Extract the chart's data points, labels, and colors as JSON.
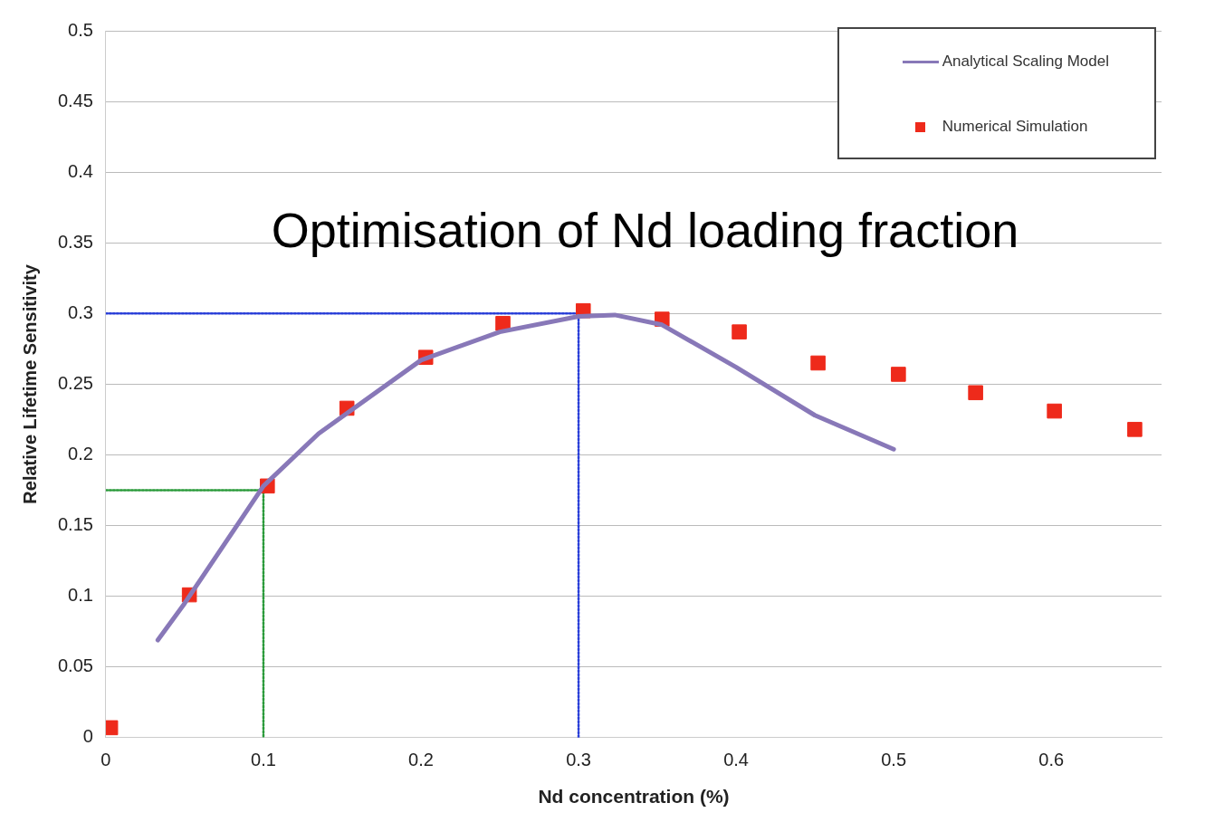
{
  "chart_data": {
    "type": "scatter",
    "title": "Optimisation of Nd loading fraction",
    "xlabel": "Nd concentration (%)",
    "ylabel": "Relative Lifetime Sensitivity",
    "xlim": [
      0,
      0.67
    ],
    "xticks": [
      0,
      0.1,
      0.2,
      0.3,
      0.4,
      0.5,
      0.6
    ],
    "ylim": [
      0,
      0.5
    ],
    "yticks": [
      0,
      0.05,
      0.1,
      0.15,
      0.2,
      0.25,
      0.3,
      0.35,
      0.4,
      0.45,
      0.5
    ],
    "grid": "y",
    "legend": "top right",
    "series": [
      {
        "name": "Analytical Scaling Model",
        "type": "line",
        "color": "#8878b8",
        "marker": "none",
        "line_style": "solid",
        "x": [
          0.033,
          0.05,
          0.1,
          0.135,
          0.2,
          0.25,
          0.3,
          0.323,
          0.353,
          0.4,
          0.45,
          0.5
        ],
        "values": [
          0.069,
          0.095,
          0.178,
          0.215,
          0.267,
          0.287,
          0.298,
          0.299,
          0.292,
          0.262,
          0.228,
          0.204
        ]
      },
      {
        "name": "Numerical Simulation",
        "color": "#ee2a1b",
        "marker": "square",
        "x": [
          0.003,
          0.053,
          0.1025,
          0.153,
          0.203,
          0.252,
          0.303,
          0.353,
          0.402,
          0.452,
          0.503,
          0.552,
          0.602,
          0.653
        ],
        "values": [
          0.007,
          0.101,
          0.178,
          0.233,
          0.269,
          0.293,
          0.302,
          0.296,
          0.287,
          0.265,
          0.257,
          0.244,
          0.231,
          0.218
        ]
      },
      {
        "type": "line",
        "color": "#2a3fd8",
        "marker": "none",
        "line_style": "dotted",
        "x": [
          0,
          0.3,
          0.3
        ],
        "values": [
          0.3,
          0.3,
          0
        ]
      },
      {
        "type": "line",
        "color": "#2a9a3a",
        "marker": "none",
        "line_style": "dotted",
        "x": [
          0,
          0.1,
          0.1
        ],
        "values": [
          0.175,
          0.175,
          0
        ]
      }
    ]
  }
}
